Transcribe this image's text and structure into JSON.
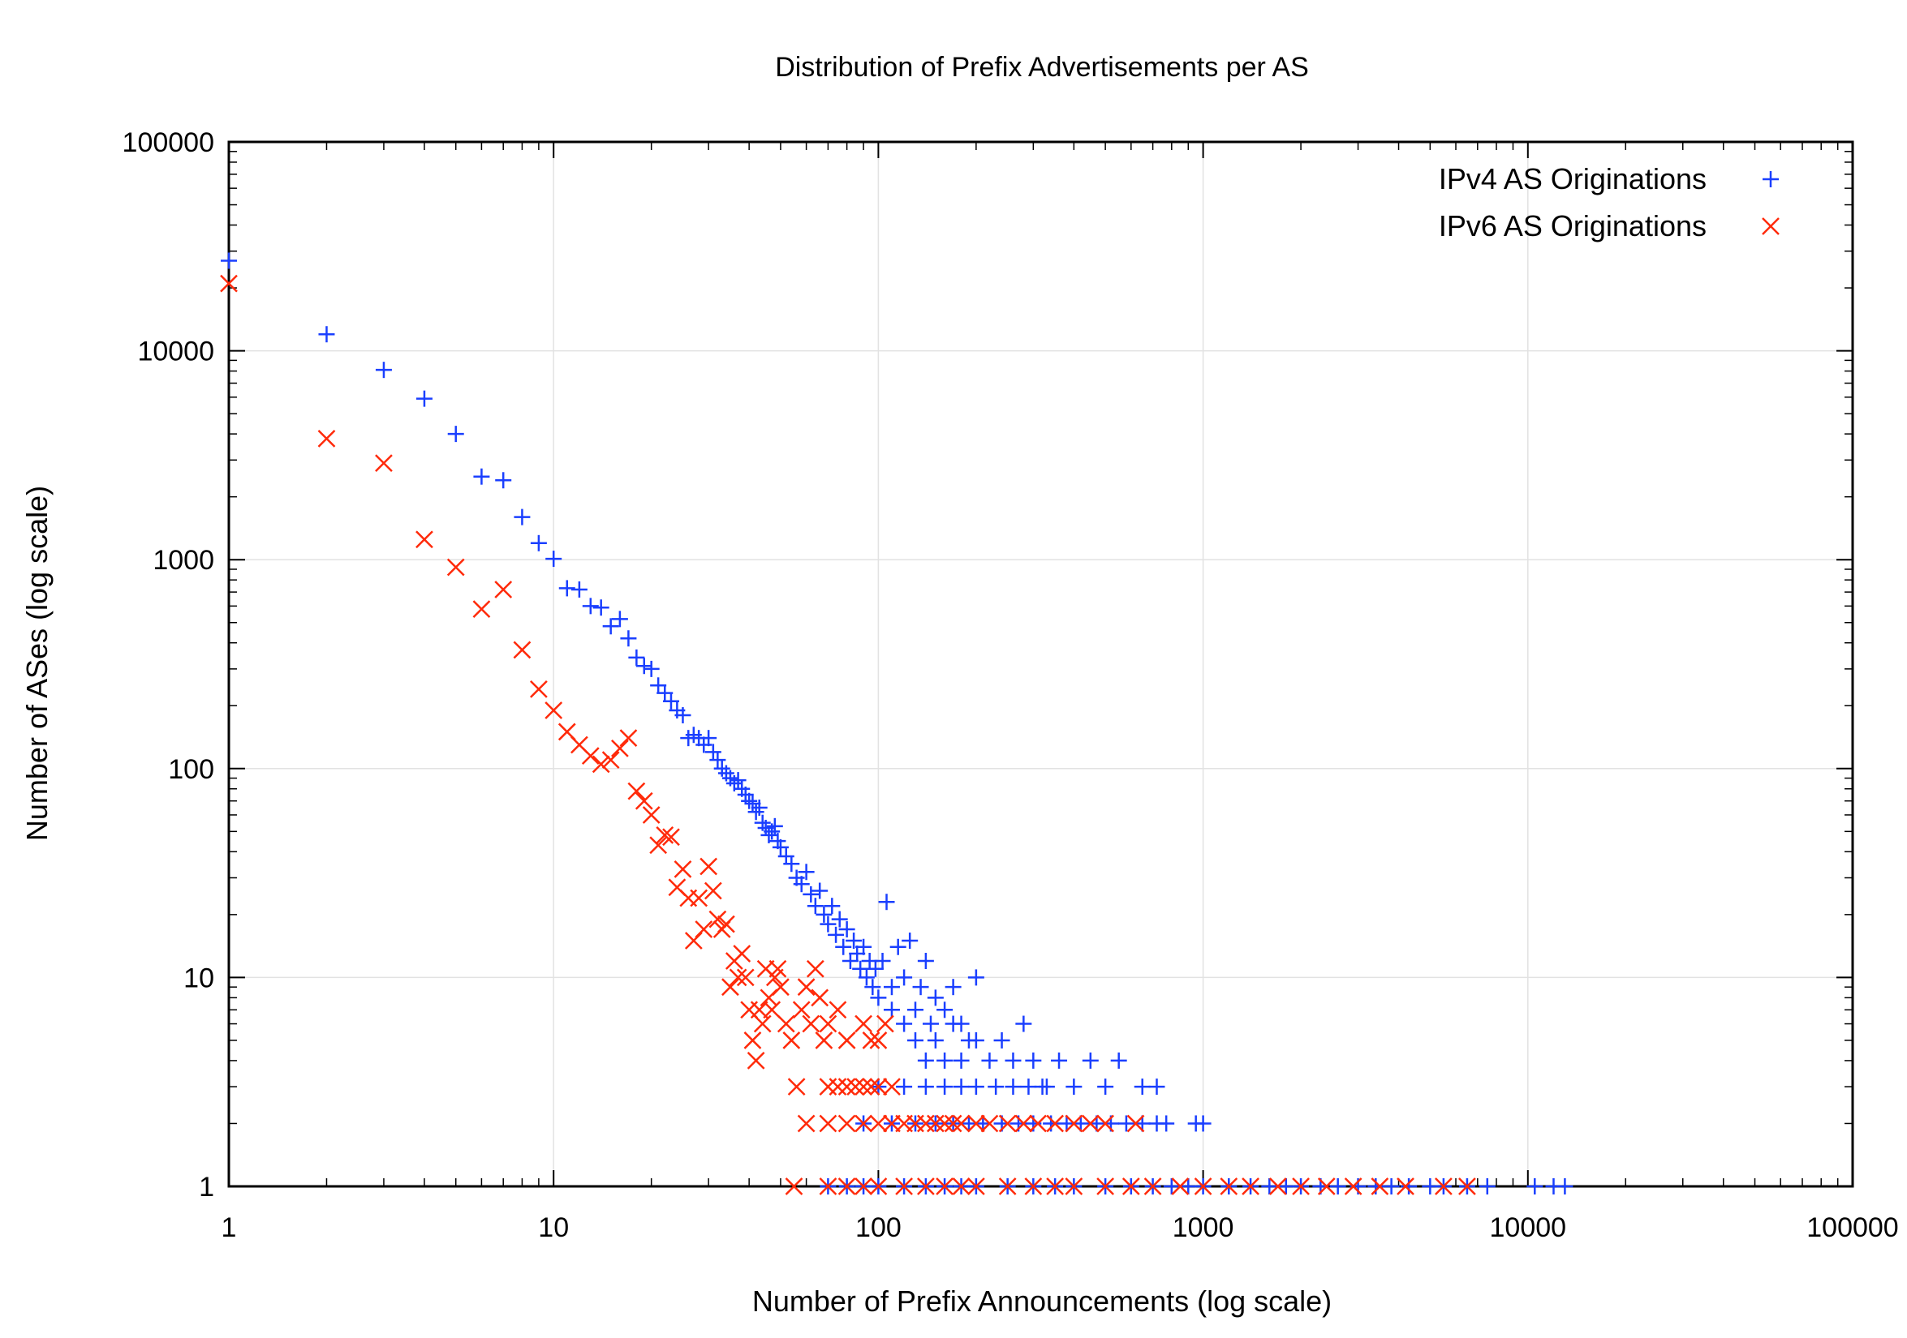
{
  "chart_data": {
    "type": "scatter",
    "title": "Distribution of Prefix Advertisements per AS",
    "xlabel": "Number of Prefix Announcements (log scale)",
    "ylabel": "Number of ASes (log scale)",
    "xscale": "log",
    "yscale": "log",
    "xlim": [
      1,
      100000
    ],
    "ylim": [
      1,
      100000
    ],
    "grid": true,
    "legend_position": "top-right",
    "xticks": [
      "1",
      "10",
      "100",
      "1000",
      "10000",
      "100000"
    ],
    "yticks": [
      "1",
      "10",
      "100",
      "1000",
      "10000",
      "100000"
    ],
    "series": [
      {
        "name": "IPv4 AS Originations",
        "marker": "plus",
        "color": "#1a3fff",
        "points": [
          [
            1,
            27000
          ],
          [
            2,
            12000
          ],
          [
            3,
            8100
          ],
          [
            4,
            5900
          ],
          [
            5,
            4000
          ],
          [
            6,
            2500
          ],
          [
            7,
            2400
          ],
          [
            8,
            1600
          ],
          [
            9,
            1200
          ],
          [
            10,
            1010
          ],
          [
            11,
            730
          ],
          [
            12,
            720
          ],
          [
            13,
            600
          ],
          [
            14,
            590
          ],
          [
            15,
            480
          ],
          [
            16,
            520
          ],
          [
            17,
            420
          ],
          [
            18,
            340
          ],
          [
            19,
            310
          ],
          [
            20,
            300
          ],
          [
            21,
            250
          ],
          [
            22,
            230
          ],
          [
            23,
            210
          ],
          [
            24,
            190
          ],
          [
            25,
            180
          ],
          [
            26,
            140
          ],
          [
            27,
            145
          ],
          [
            28,
            140
          ],
          [
            29,
            130
          ],
          [
            30,
            140
          ],
          [
            31,
            120
          ],
          [
            32,
            110
          ],
          [
            33,
            100
          ],
          [
            34,
            95
          ],
          [
            35,
            90
          ],
          [
            36,
            85
          ],
          [
            37,
            88
          ],
          [
            38,
            80
          ],
          [
            39,
            75
          ],
          [
            40,
            70
          ],
          [
            41,
            68
          ],
          [
            42,
            62
          ],
          [
            43,
            65
          ],
          [
            44,
            55
          ],
          [
            45,
            52
          ],
          [
            46,
            48
          ],
          [
            47,
            50
          ],
          [
            48,
            53
          ],
          [
            49,
            45
          ],
          [
            50,
            42
          ],
          [
            52,
            38
          ],
          [
            54,
            35
          ],
          [
            56,
            30
          ],
          [
            58,
            28
          ],
          [
            60,
            32
          ],
          [
            62,
            25
          ],
          [
            64,
            22
          ],
          [
            66,
            26
          ],
          [
            68,
            20
          ],
          [
            70,
            18
          ],
          [
            72,
            22
          ],
          [
            74,
            16
          ],
          [
            76,
            19
          ],
          [
            78,
            14
          ],
          [
            80,
            17
          ],
          [
            82,
            12
          ],
          [
            84,
            15
          ],
          [
            86,
            13
          ],
          [
            88,
            11
          ],
          [
            90,
            14
          ],
          [
            92,
            10
          ],
          [
            94,
            12
          ],
          [
            96,
            9
          ],
          [
            98,
            11
          ],
          [
            100,
            8
          ],
          [
            103,
            12
          ],
          [
            106,
            23
          ],
          [
            110,
            9
          ],
          [
            115,
            14
          ],
          [
            120,
            10
          ],
          [
            125,
            15
          ],
          [
            130,
            7
          ],
          [
            135,
            9
          ],
          [
            140,
            12
          ],
          [
            145,
            6
          ],
          [
            150,
            8
          ],
          [
            160,
            7
          ],
          [
            170,
            9
          ],
          [
            180,
            6
          ],
          [
            190,
            5
          ],
          [
            200,
            10
          ],
          [
            110,
            7
          ],
          [
            120,
            6
          ],
          [
            130,
            5
          ],
          [
            140,
            4
          ],
          [
            150,
            5
          ],
          [
            160,
            4
          ],
          [
            170,
            6
          ],
          [
            180,
            4
          ],
          [
            200,
            5
          ],
          [
            220,
            4
          ],
          [
            240,
            5
          ],
          [
            260,
            4
          ],
          [
            280,
            6
          ],
          [
            300,
            4
          ],
          [
            330,
            3
          ],
          [
            360,
            4
          ],
          [
            400,
            3
          ],
          [
            450,
            4
          ],
          [
            500,
            3
          ],
          [
            550,
            4
          ],
          [
            650,
            3
          ],
          [
            720,
            3
          ],
          [
            100,
            3
          ],
          [
            120,
            3
          ],
          [
            140,
            3
          ],
          [
            160,
            3
          ],
          [
            180,
            3
          ],
          [
            200,
            3
          ],
          [
            230,
            3
          ],
          [
            260,
            3
          ],
          [
            290,
            3
          ],
          [
            320,
            3
          ],
          [
            90,
            2
          ],
          [
            110,
            2
          ],
          [
            130,
            2
          ],
          [
            150,
            2
          ],
          [
            170,
            2
          ],
          [
            190,
            2
          ],
          [
            210,
            2
          ],
          [
            240,
            2
          ],
          [
            270,
            2
          ],
          [
            300,
            2
          ],
          [
            340,
            2
          ],
          [
            380,
            2
          ],
          [
            420,
            2
          ],
          [
            470,
            2
          ],
          [
            520,
            2
          ],
          [
            580,
            2
          ],
          [
            650,
            2
          ],
          [
            720,
            2
          ],
          [
            770,
            2
          ],
          [
            950,
            2
          ],
          [
            1000,
            2
          ],
          [
            70,
            1
          ],
          [
            80,
            1
          ],
          [
            90,
            1
          ],
          [
            100,
            1
          ],
          [
            120,
            1
          ],
          [
            140,
            1
          ],
          [
            160,
            1
          ],
          [
            180,
            1
          ],
          [
            200,
            1
          ],
          [
            250,
            1
          ],
          [
            300,
            1
          ],
          [
            350,
            1
          ],
          [
            400,
            1
          ],
          [
            500,
            1
          ],
          [
            600,
            1
          ],
          [
            700,
            1
          ],
          [
            800,
            1
          ],
          [
            900,
            1
          ],
          [
            1000,
            1
          ],
          [
            1200,
            1
          ],
          [
            1400,
            1
          ],
          [
            1600,
            1
          ],
          [
            1800,
            1
          ],
          [
            2000,
            1
          ],
          [
            2300,
            1
          ],
          [
            2600,
            1
          ],
          [
            3000,
            1
          ],
          [
            3400,
            1
          ],
          [
            3800,
            1
          ],
          [
            4300,
            1
          ],
          [
            5000,
            1
          ],
          [
            5500,
            1
          ],
          [
            6500,
            1
          ],
          [
            7500,
            1
          ],
          [
            10500,
            1
          ],
          [
            12000,
            1
          ],
          [
            13000,
            1
          ]
        ]
      },
      {
        "name": "IPv6 AS Originations",
        "marker": "cross",
        "color": "#ff2a0a",
        "points": [
          [
            1,
            21000
          ],
          [
            2,
            3800
          ],
          [
            3,
            2900
          ],
          [
            4,
            1250
          ],
          [
            5,
            920
          ],
          [
            6,
            580
          ],
          [
            7,
            720
          ],
          [
            8,
            370
          ],
          [
            9,
            240
          ],
          [
            10,
            190
          ],
          [
            11,
            150
          ],
          [
            12,
            130
          ],
          [
            13,
            115
          ],
          [
            14,
            105
          ],
          [
            15,
            110
          ],
          [
            16,
            125
          ],
          [
            17,
            140
          ],
          [
            18,
            78
          ],
          [
            19,
            70
          ],
          [
            20,
            60
          ],
          [
            21,
            43
          ],
          [
            22,
            48
          ],
          [
            23,
            47
          ],
          [
            24,
            27
          ],
          [
            25,
            33
          ],
          [
            26,
            24
          ],
          [
            27,
            15
          ],
          [
            28,
            24
          ],
          [
            29,
            17
          ],
          [
            30,
            34
          ],
          [
            31,
            26
          ],
          [
            32,
            19
          ],
          [
            33,
            17
          ],
          [
            34,
            18
          ],
          [
            35,
            9
          ],
          [
            36,
            12
          ],
          [
            37,
            10
          ],
          [
            38,
            13
          ],
          [
            39,
            10
          ],
          [
            40,
            7
          ],
          [
            41,
            5
          ],
          [
            42,
            4
          ],
          [
            43,
            7
          ],
          [
            44,
            6
          ],
          [
            45,
            11
          ],
          [
            46,
            8
          ],
          [
            47,
            7
          ],
          [
            48,
            10
          ],
          [
            49,
            11
          ],
          [
            50,
            9
          ],
          [
            52,
            6
          ],
          [
            54,
            5
          ],
          [
            56,
            3
          ],
          [
            58,
            7
          ],
          [
            60,
            9
          ],
          [
            62,
            6
          ],
          [
            64,
            11
          ],
          [
            66,
            8
          ],
          [
            68,
            5
          ],
          [
            70,
            6
          ],
          [
            75,
            7
          ],
          [
            80,
            5
          ],
          [
            90,
            6
          ],
          [
            95,
            5
          ],
          [
            100,
            5
          ],
          [
            105,
            6
          ],
          [
            70,
            3
          ],
          [
            75,
            3
          ],
          [
            80,
            3
          ],
          [
            85,
            3
          ],
          [
            90,
            3
          ],
          [
            95,
            3
          ],
          [
            100,
            3
          ],
          [
            110,
            3
          ],
          [
            60,
            2
          ],
          [
            70,
            2
          ],
          [
            80,
            2
          ],
          [
            90,
            2
          ],
          [
            100,
            2
          ],
          [
            110,
            2
          ],
          [
            120,
            2
          ],
          [
            130,
            2
          ],
          [
            140,
            2
          ],
          [
            150,
            2
          ],
          [
            160,
            2
          ],
          [
            170,
            2
          ],
          [
            180,
            2
          ],
          [
            200,
            2
          ],
          [
            220,
            2
          ],
          [
            250,
            2
          ],
          [
            280,
            2
          ],
          [
            310,
            2
          ],
          [
            350,
            2
          ],
          [
            400,
            2
          ],
          [
            450,
            2
          ],
          [
            500,
            2
          ],
          [
            620,
            2
          ],
          [
            55,
            1
          ],
          [
            70,
            1
          ],
          [
            80,
            1
          ],
          [
            90,
            1
          ],
          [
            100,
            1
          ],
          [
            120,
            1
          ],
          [
            140,
            1
          ],
          [
            160,
            1
          ],
          [
            180,
            1
          ],
          [
            200,
            1
          ],
          [
            250,
            1
          ],
          [
            300,
            1
          ],
          [
            350,
            1
          ],
          [
            400,
            1
          ],
          [
            500,
            1
          ],
          [
            600,
            1
          ],
          [
            700,
            1
          ],
          [
            850,
            1
          ],
          [
            1000,
            1
          ],
          [
            1200,
            1
          ],
          [
            1400,
            1
          ],
          [
            1700,
            1
          ],
          [
            2000,
            1
          ],
          [
            2400,
            1
          ],
          [
            2900,
            1
          ],
          [
            3500,
            1
          ],
          [
            4200,
            1
          ],
          [
            5500,
            1
          ],
          [
            6500,
            1
          ]
        ]
      }
    ]
  }
}
